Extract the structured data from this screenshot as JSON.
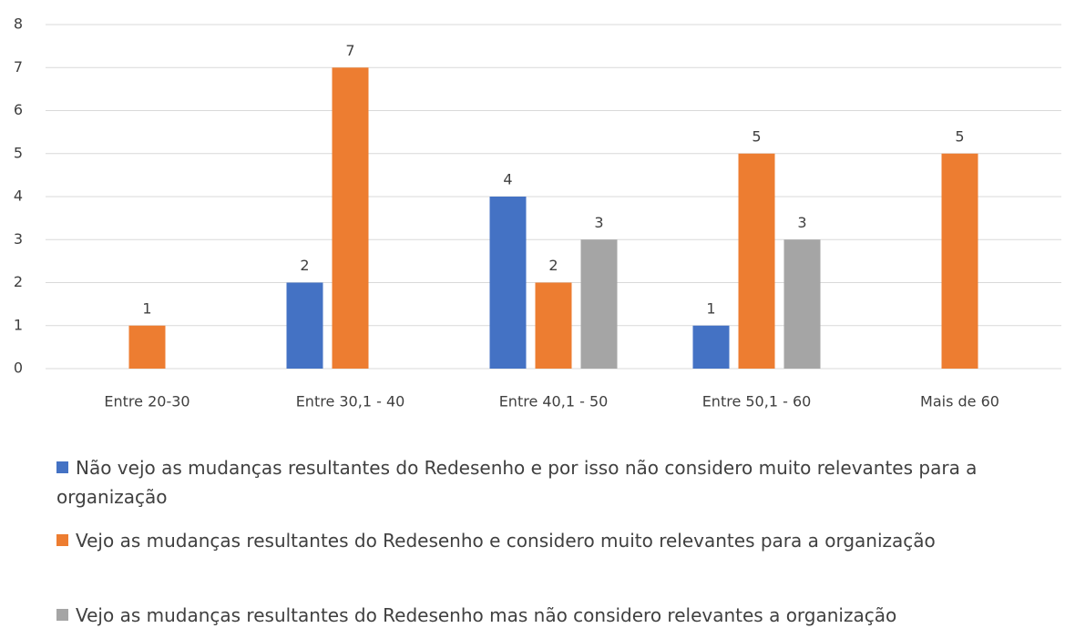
{
  "chart_data": {
    "type": "bar",
    "categories": [
      "Entre 20-30",
      "Entre 30,1 - 40",
      "Entre 40,1 - 50",
      "Entre 50,1 - 60",
      "Mais de 60"
    ],
    "series": [
      {
        "name": "Não vejo as mudanças resultantes do Redesenho e por isso não considero muito relevantes para a organização",
        "color": "#4472c4",
        "values": [
          null,
          2,
          4,
          1,
          null
        ]
      },
      {
        "name": "Vejo as mudanças resultantes do Redesenho e considero muito relevantes para a organização",
        "color": "#ed7d31",
        "values": [
          1,
          7,
          2,
          5,
          5
        ]
      },
      {
        "name": "Vejo as mudanças resultantes do Redesenho mas não considero relevantes a organização",
        "color": "#a5a5a5",
        "values": [
          null,
          null,
          3,
          3,
          null
        ]
      }
    ],
    "ylim": [
      0,
      8
    ],
    "yticks": [
      0,
      1,
      2,
      3,
      4,
      5,
      6,
      7,
      8
    ],
    "grid": true
  }
}
